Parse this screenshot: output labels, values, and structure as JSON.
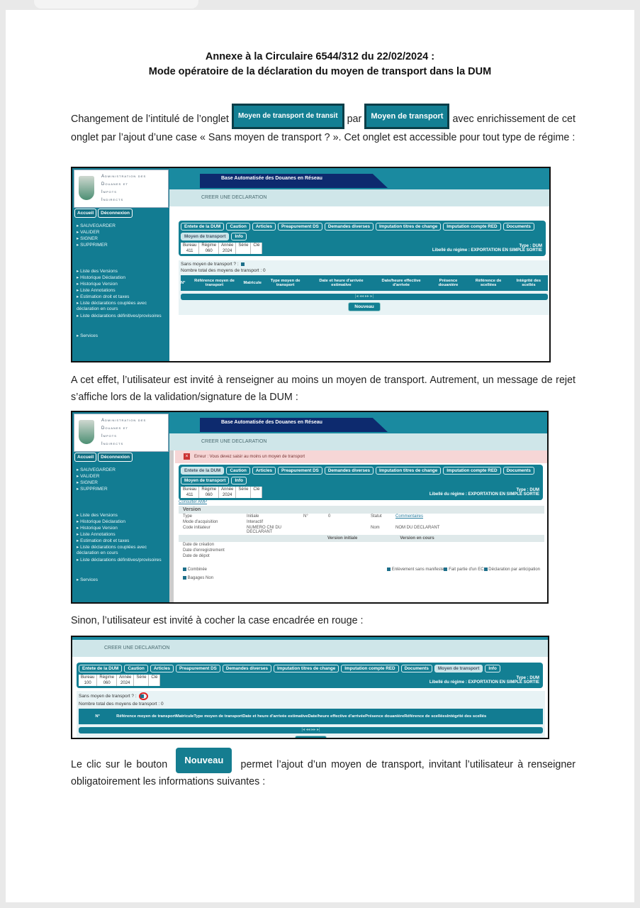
{
  "document": {
    "title_line1": "Annexe à la Circulaire 6544/312 du 22/02/2024 :",
    "title_line2": "Mode opératoire de la déclaration du moyen de transport dans la DUM",
    "para1_a": "Changement de l’intitulé de l’onglet",
    "old_tab_label": "Moyen de transport de transit",
    "para1_b": "par",
    "new_tab_label": "Moyen de transport",
    "para1_c": "avec enrichissement de cet onglet par l’ajout d’une case « Sans moyen de transport ? ». Cet onglet est accessible pour tout type de régime :",
    "para2": "A cet effet, l’utilisateur est invité à renseigner au moins un moyen de transport. Autrement, un message de rejet s’affiche lors de la validation/signature de la DUM :",
    "para3": "Sinon, l’utilisateur est invité à cocher la case encadrée en rouge :",
    "para4_a": "Le clic sur le bouton",
    "nouveau_label": "Nouveau",
    "para4_b": "permet l’ajout d’un moyen de transport, invitant l’utilisateur à renseigner obligatoirement les informations suivantes :"
  },
  "app": {
    "logo_lines": [
      "Administration des",
      "Douanes et",
      "Impots",
      "Indirects"
    ],
    "banner_title": "Base Automatisée des Douanes en Réseau",
    "page_heading": "CREER UNE DECLARATION",
    "nav_buttons": [
      "Accueil",
      "Déconnexion"
    ],
    "actions": [
      "SAUVEGARDER",
      "VALIDER",
      "SIGNER",
      "SUPPRIMER"
    ],
    "links": [
      "Liste des Versions",
      "Historique Déclaration",
      "Historique Version",
      "Liste Annotations",
      "Estimation droit et taxes",
      "Liste déclarations couplées avec déclaration en cours",
      "Liste déclarations définitives/provisoires"
    ],
    "services": "Services",
    "tabs": [
      "Entete de la DUM",
      "Caution",
      "Articles",
      "Preapurement DS",
      "Demandes diverses",
      "Imputation titres de change",
      "Imputation compte RED",
      "Documents",
      "Moyen de transport",
      "Info"
    ],
    "id_headers": [
      "Bureau",
      "Régime",
      "Année",
      "Série",
      "Clé"
    ],
    "type_label": "Type : DUM",
    "regime_label": "Libellé du régime : EXPORTATION EN SIMPLE SORTIE",
    "sans_moyen": "Sans moyen de transport ? :",
    "total_label": "Nombre total des moyens de transport : 0",
    "columns": [
      "N°",
      "Référence moyen de transport",
      "Matricule",
      "Type moyen de transport",
      "Date et heure d'arrivée estimative",
      "Date/heure effective d'arrivée",
      "Présence douanière",
      "Référence de scellées",
      "Intégrité des scellés"
    ],
    "pager": "|◂  ◂◂       ▸▸  ▸|",
    "nouveau": "Nouveau"
  },
  "shots": [
    {
      "bureau": "411",
      "regime": "060",
      "annee": "2024",
      "active_tab": 8
    },
    {
      "bureau": "411",
      "regime": "060",
      "annee": "2024",
      "active_tab": 0,
      "error_text": "Erreur :  Vous devez saisir au moins un moyen de transport",
      "consulter": "Consulter AMP",
      "version_title": "Version",
      "rows": [
        [
          "Type",
          "Initiale",
          "N°",
          "0",
          "Statut",
          "Commentaires"
        ],
        [
          "Mode d'acquisition",
          "Interactif",
          "",
          "",
          "",
          ""
        ],
        [
          "Code initiateur",
          "NUMERO CNI DU DECLARANT",
          "",
          "",
          "Nom",
          "NOM DU DECLARANT"
        ]
      ],
      "version_initiale": "Version initiale",
      "version_en_cours": "Version en cours",
      "dates": [
        "Date de création",
        "Date d'enregistrement",
        "Date de dépot"
      ],
      "checks": [
        "Combinée",
        "Enlèvement sans manifeste",
        "Fait partie d'un EC",
        "Déclaration par anticipation",
        "Bagages Non"
      ]
    },
    {
      "bureau": "100",
      "regime": "060",
      "annee": "2024",
      "active_tab": 8
    }
  ],
  "colors": {
    "teal": "#137f93",
    "navy": "#0d2a6e",
    "error_bg": "#f6d6d6",
    "highlight": "#dd2222"
  }
}
